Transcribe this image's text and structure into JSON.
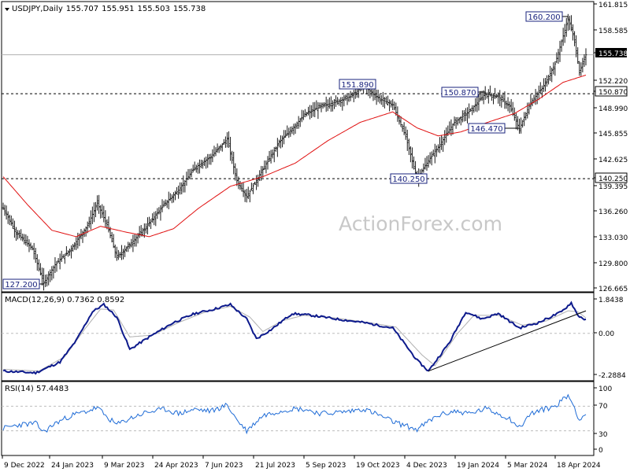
{
  "chart_data": {
    "type": "line",
    "symbol": "USDJPY",
    "timeframe": "Daily",
    "ohlc": [
      "155.707",
      "155.951",
      "155.503",
      "155.738"
    ],
    "watermark": "ActionForex.com",
    "x_ticks": [
      "9 Dec 2022",
      "24 Jan 2023",
      "9 Mar 2023",
      "24 Apr 2023",
      "7 Jun 2023",
      "21 Jul 2023",
      "5 Sep 2023",
      "19 Oct 2023",
      "4 Dec 2023",
      "19 Jan 2024",
      "5 Mar 2024",
      "18 Apr 2024"
    ],
    "price_panel": {
      "y_ticks": [
        "161.815",
        "158.585",
        "155.738",
        "152.220",
        "150.870",
        "148.990",
        "145.855",
        "142.625",
        "140.250",
        "139.395",
        "136.260",
        "133.030",
        "129.800",
        "126.665"
      ],
      "ylim": [
        126.2,
        162.0
      ],
      "current_price": "155.738",
      "levels": [
        {
          "value": 150.87,
          "label": "150.870"
        },
        {
          "value": 140.25,
          "label": "140.250"
        }
      ],
      "annotations": [
        {
          "label": "160.200",
          "value": 160.2,
          "index": 348
        },
        {
          "label": "151.890",
          "value": 151.89,
          "index": 222
        },
        {
          "label": "150.870",
          "value": 150.87,
          "index": 297
        },
        {
          "label": "146.470",
          "value": 146.47,
          "index": 318
        },
        {
          "label": "140.250",
          "value": 140.25,
          "index": 255
        },
        {
          "label": "127.200",
          "value": 127.2,
          "index": 25
        }
      ],
      "price_anchors": [
        [
          0,
          136.6
        ],
        [
          8,
          133.5
        ],
        [
          18,
          131.5
        ],
        [
          25,
          127.2
        ],
        [
          32,
          129.5
        ],
        [
          42,
          131.5
        ],
        [
          52,
          134.4
        ],
        [
          58,
          137.2
        ],
        [
          64,
          134.5
        ],
        [
          70,
          130.4
        ],
        [
          78,
          132.0
        ],
        [
          88,
          134.2
        ],
        [
          100,
          137.2
        ],
        [
          108,
          138.8
        ],
        [
          118,
          141.6
        ],
        [
          128,
          143.0
        ],
        [
          138,
          145.2
        ],
        [
          144,
          140.0
        ],
        [
          150,
          138.0
        ],
        [
          160,
          141.4
        ],
        [
          170,
          144.8
        ],
        [
          178,
          146.5
        ],
        [
          186,
          148.3
        ],
        [
          196,
          149.3
        ],
        [
          206,
          149.9
        ],
        [
          214,
          150.5
        ],
        [
          222,
          151.89
        ],
        [
          232,
          150.2
        ],
        [
          240,
          149.5
        ],
        [
          248,
          145.5
        ],
        [
          255,
          140.25
        ],
        [
          262,
          142.5
        ],
        [
          268,
          144.2
        ],
        [
          278,
          147.3
        ],
        [
          288,
          148.8
        ],
        [
          297,
          150.87
        ],
        [
          305,
          150.5
        ],
        [
          312,
          149.3
        ],
        [
          318,
          146.47
        ],
        [
          325,
          149.8
        ],
        [
          333,
          151.8
        ],
        [
          340,
          154.6
        ],
        [
          348,
          160.2
        ],
        [
          352,
          157.6
        ],
        [
          355,
          153.5
        ],
        [
          359,
          155.738
        ]
      ],
      "ma_anchors": [
        [
          0,
          140.5
        ],
        [
          15,
          137.0
        ],
        [
          30,
          133.8
        ],
        [
          45,
          133.0
        ],
        [
          60,
          134.3
        ],
        [
          75,
          133.6
        ],
        [
          90,
          133.0
        ],
        [
          105,
          134.0
        ],
        [
          120,
          136.5
        ],
        [
          140,
          139.3
        ],
        [
          160,
          140.5
        ],
        [
          180,
          142.2
        ],
        [
          200,
          145.0
        ],
        [
          220,
          147.3
        ],
        [
          240,
          148.6
        ],
        [
          255,
          146.6
        ],
        [
          268,
          145.6
        ],
        [
          282,
          146.1
        ],
        [
          300,
          147.4
        ],
        [
          315,
          148.4
        ],
        [
          330,
          150.2
        ],
        [
          345,
          152.3
        ],
        [
          359,
          153.2
        ]
      ]
    },
    "macd_panel": {
      "label": "MACD(12,26,9) 0.7362 0.8592",
      "y_ticks": [
        "1.8438",
        "0.00",
        "-2.2884"
      ],
      "ylim": [
        -2.55,
        2.0
      ],
      "macd_anchors": [
        [
          0,
          -2.1
        ],
        [
          20,
          -2.2
        ],
        [
          35,
          -1.6
        ],
        [
          45,
          -0.4
        ],
        [
          55,
          1.2
        ],
        [
          62,
          1.6
        ],
        [
          70,
          0.9
        ],
        [
          78,
          -0.9
        ],
        [
          90,
          -0.2
        ],
        [
          105,
          0.6
        ],
        [
          118,
          1.1
        ],
        [
          128,
          1.3
        ],
        [
          140,
          1.6
        ],
        [
          150,
          0.8
        ],
        [
          156,
          -0.3
        ],
        [
          165,
          0.2
        ],
        [
          178,
          1.1
        ],
        [
          190,
          1.0
        ],
        [
          205,
          0.8
        ],
        [
          222,
          0.6
        ],
        [
          240,
          0.3
        ],
        [
          255,
          -1.5
        ],
        [
          262,
          -2.1
        ],
        [
          275,
          -0.5
        ],
        [
          285,
          1.2
        ],
        [
          295,
          0.8
        ],
        [
          305,
          1.1
        ],
        [
          318,
          0.3
        ],
        [
          330,
          0.6
        ],
        [
          344,
          1.2
        ],
        [
          350,
          1.7
        ],
        [
          354,
          1.0
        ],
        [
          359,
          0.74
        ]
      ],
      "signal_anchors": [
        [
          0,
          -2.0
        ],
        [
          22,
          -2.1
        ],
        [
          38,
          -1.3
        ],
        [
          50,
          0.2
        ],
        [
          60,
          1.35
        ],
        [
          68,
          1.3
        ],
        [
          78,
          -0.2
        ],
        [
          92,
          -0.1
        ],
        [
          108,
          0.6
        ],
        [
          125,
          1.2
        ],
        [
          140,
          1.5
        ],
        [
          152,
          0.9
        ],
        [
          160,
          0.1
        ],
        [
          172,
          0.7
        ],
        [
          185,
          1.0
        ],
        [
          205,
          0.85
        ],
        [
          225,
          0.6
        ],
        [
          242,
          0.35
        ],
        [
          258,
          -1.2
        ],
        [
          266,
          -1.8
        ],
        [
          280,
          0.0
        ],
        [
          290,
          1.0
        ],
        [
          305,
          1.0
        ],
        [
          320,
          0.45
        ],
        [
          335,
          0.7
        ],
        [
          348,
          1.25
        ],
        [
          354,
          1.2
        ],
        [
          359,
          0.86
        ]
      ],
      "trendline": [
        [
          262,
          -2.1
        ],
        [
          359,
          1.25
        ]
      ]
    },
    "rsi_panel": {
      "label": "RSI(14) 57.4483",
      "y_ticks": [
        "100",
        "70",
        "30",
        "0"
      ],
      "ylim": [
        0,
        100
      ],
      "levels": [
        70,
        30
      ],
      "rsi_anchors": [
        [
          0,
          34
        ],
        [
          10,
          40
        ],
        [
          20,
          42
        ],
        [
          25,
          28
        ],
        [
          32,
          42
        ],
        [
          42,
          55
        ],
        [
          52,
          62
        ],
        [
          58,
          68
        ],
        [
          64,
          52
        ],
        [
          70,
          40
        ],
        [
          78,
          50
        ],
        [
          88,
          60
        ],
        [
          100,
          65
        ],
        [
          108,
          58
        ],
        [
          118,
          65
        ],
        [
          128,
          62
        ],
        [
          138,
          72
        ],
        [
          144,
          48
        ],
        [
          150,
          30
        ],
        [
          160,
          55
        ],
        [
          170,
          62
        ],
        [
          178,
          66
        ],
        [
          186,
          65
        ],
        [
          196,
          58
        ],
        [
          206,
          60
        ],
        [
          214,
          62
        ],
        [
          222,
          66
        ],
        [
          232,
          55
        ],
        [
          240,
          45
        ],
        [
          248,
          38
        ],
        [
          255,
          32
        ],
        [
          262,
          45
        ],
        [
          268,
          55
        ],
        [
          278,
          62
        ],
        [
          288,
          58
        ],
        [
          297,
          66
        ],
        [
          305,
          58
        ],
        [
          312,
          50
        ],
        [
          318,
          35
        ],
        [
          325,
          58
        ],
        [
          333,
          65
        ],
        [
          340,
          70
        ],
        [
          348,
          88
        ],
        [
          352,
          68
        ],
        [
          355,
          48
        ],
        [
          359,
          57.45
        ]
      ]
    }
  }
}
